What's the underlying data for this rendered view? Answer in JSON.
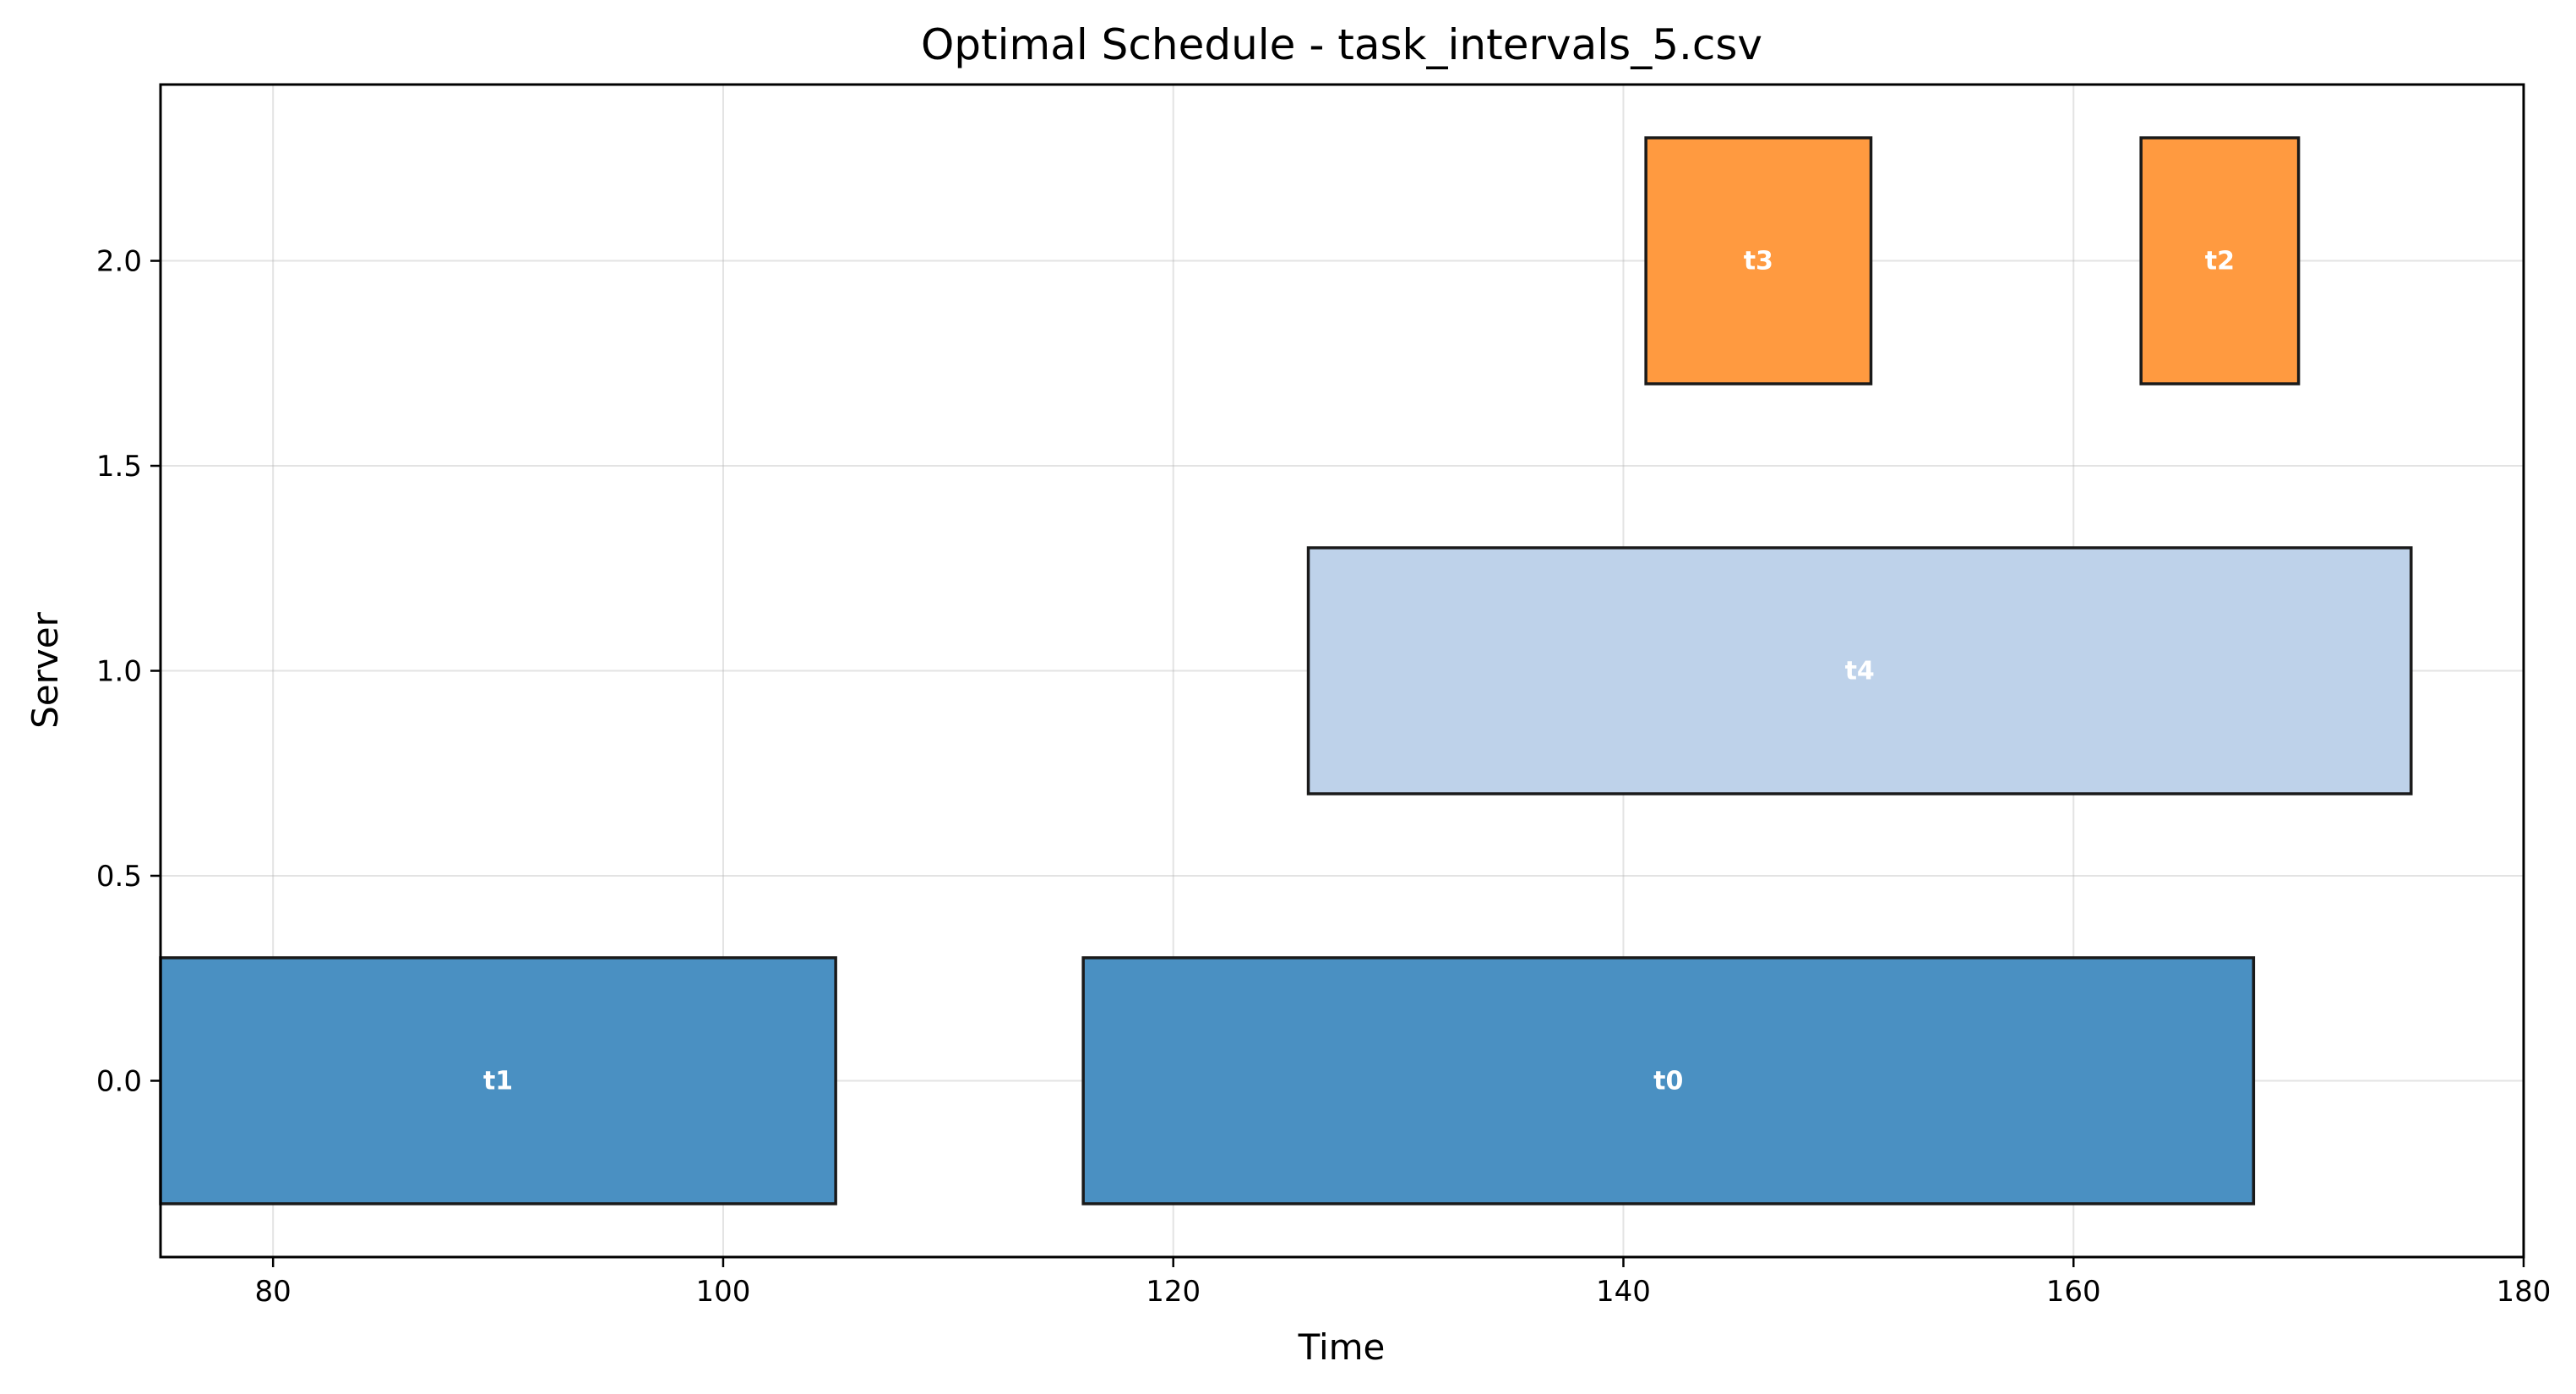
{
  "chart_data": {
    "type": "gantt",
    "title": "Optimal Schedule - task_intervals_5.csv",
    "xlabel": "Time",
    "ylabel": "Server",
    "xlim": [
      75,
      180
    ],
    "ylim": [
      -0.43,
      2.43
    ],
    "xticks": [
      80,
      100,
      120,
      140,
      160,
      180
    ],
    "xtick_labels": [
      "80",
      "100",
      "120",
      "140",
      "160",
      "180"
    ],
    "yticks": [
      0.0,
      0.5,
      1.0,
      1.5,
      2.0
    ],
    "ytick_labels": [
      "0.0",
      "0.5",
      "1.0",
      "1.5",
      "2.0"
    ],
    "grid": true,
    "bar_half_height": 0.3,
    "tasks": [
      {
        "name": "t1",
        "server": 0,
        "start": 75,
        "end": 105,
        "color": "#4a90c2"
      },
      {
        "name": "t0",
        "server": 0,
        "start": 116,
        "end": 168,
        "color": "#4a90c2"
      },
      {
        "name": "t4",
        "server": 1,
        "start": 126,
        "end": 175,
        "color": "#bed2ea"
      },
      {
        "name": "t3",
        "server": 2,
        "start": 141,
        "end": 151,
        "color": "#ff9a40"
      },
      {
        "name": "t2",
        "server": 2,
        "start": 163,
        "end": 170,
        "color": "#ff9a40"
      }
    ]
  }
}
